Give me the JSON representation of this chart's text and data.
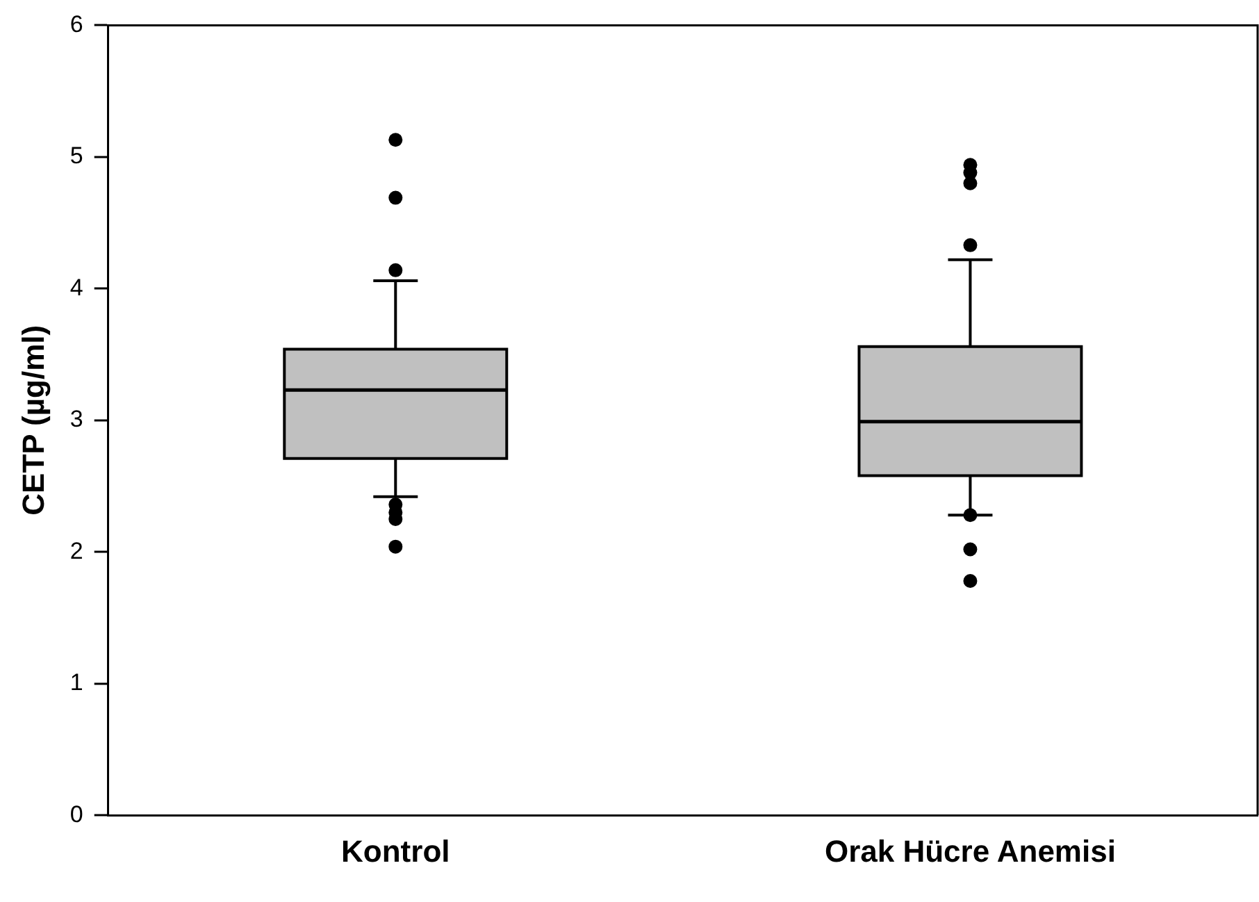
{
  "chart_data": {
    "type": "box",
    "ylabel": "CETP (µg/ml)",
    "categories": [
      "Kontrol",
      "Orak Hücre Anemisi"
    ],
    "color": "#c0c0c0",
    "boxes": [
      {
        "low": 2.42,
        "q1": 2.71,
        "median": 3.23,
        "q3": 3.54,
        "high": 4.06,
        "outliers": [
          5.13,
          4.69,
          4.14,
          2.36,
          2.3,
          2.25,
          2.04
        ]
      },
      {
        "low": 2.28,
        "q1": 2.58,
        "median": 2.99,
        "q3": 3.56,
        "high": 4.22,
        "outliers": [
          4.94,
          4.88,
          4.8,
          4.33,
          2.28,
          2.02,
          1.78
        ]
      }
    ],
    "ylim": [
      0,
      6
    ],
    "yticks": [
      0,
      1,
      2,
      3,
      4,
      5,
      6
    ],
    "grid": false,
    "legend": false
  }
}
